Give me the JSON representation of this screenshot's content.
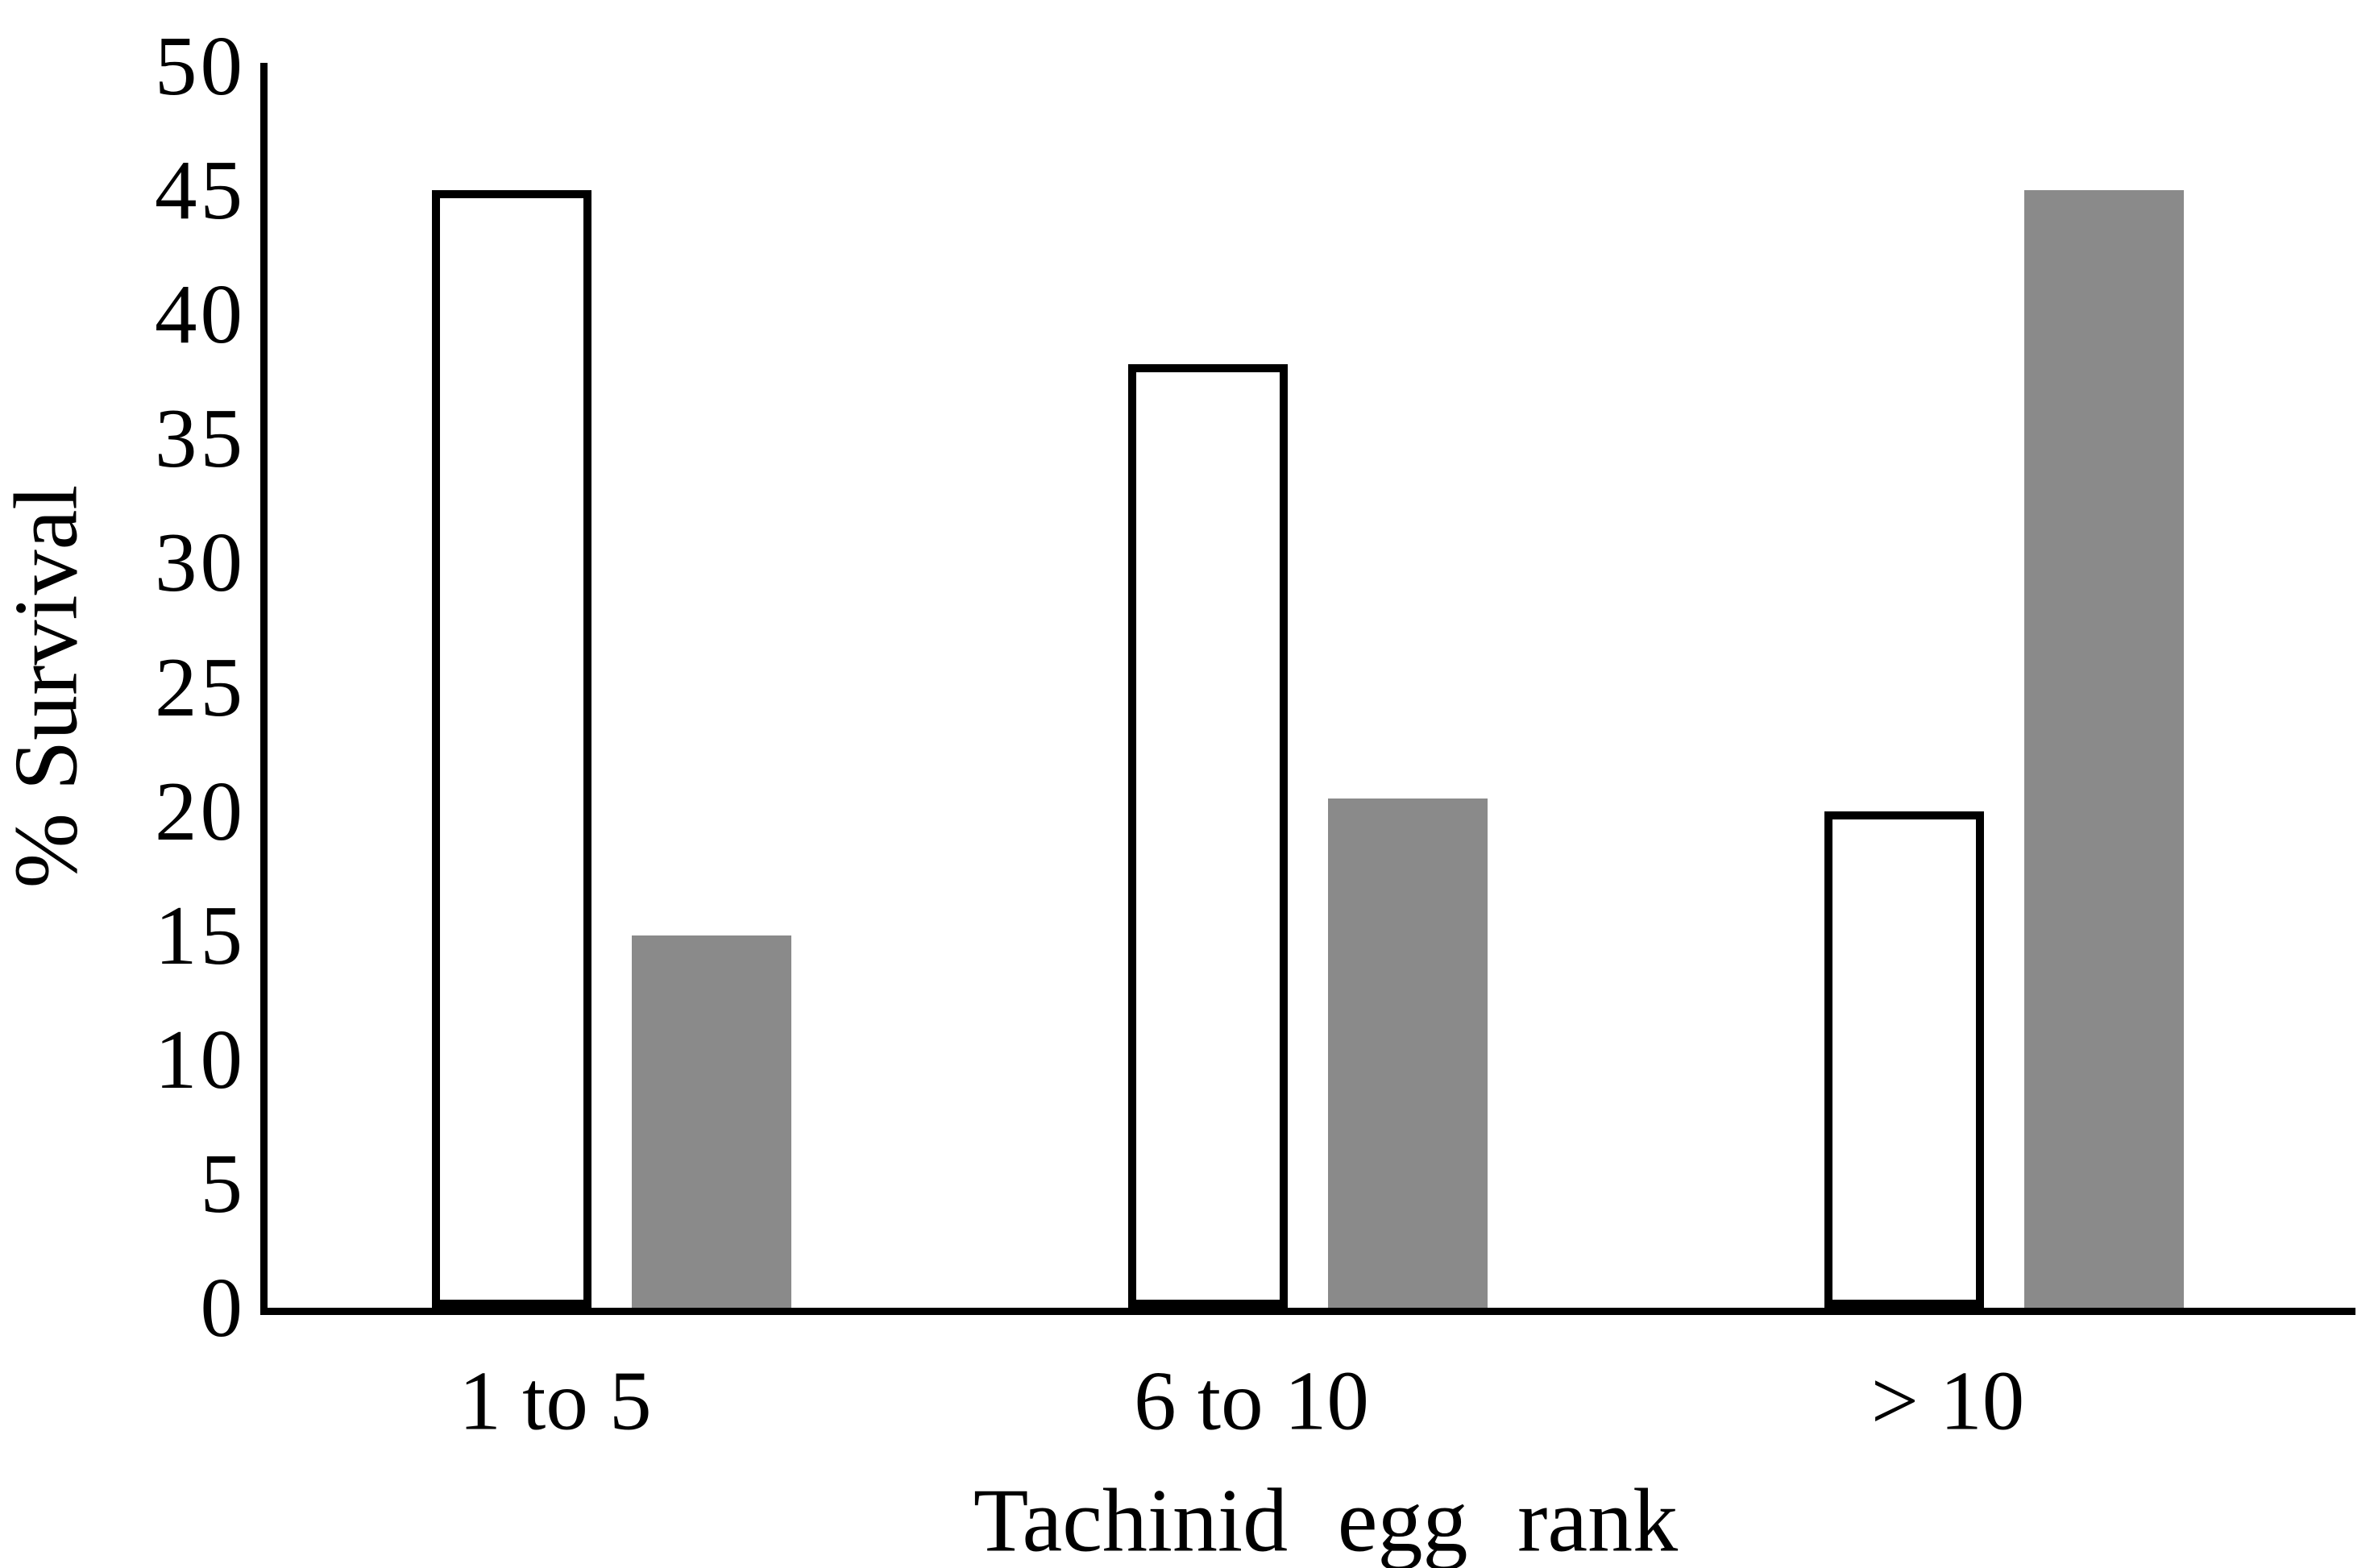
{
  "chart_data": {
    "type": "bar",
    "title": "",
    "xlabel": "Tachinid egg rank",
    "ylabel": "% Survival",
    "categories": [
      "1 to 5",
      "6 to 10",
      "> 10"
    ],
    "series": [
      {
        "fill": "white",
        "values": [
          45,
          38,
          20
        ]
      },
      {
        "fill": "gray",
        "values": [
          15,
          20.5,
          45
        ]
      }
    ],
    "ylim": [
      0,
      50
    ],
    "ytick_step": 5,
    "yticks": [
      0,
      5,
      10,
      15,
      20,
      25,
      30,
      35,
      40,
      45,
      50
    ],
    "grid": false,
    "legend": false
  },
  "colors": {
    "background": "#ffffff",
    "text": "#000000",
    "axis": "#000000",
    "bar_outline": "#000000",
    "bar_fill_white": "#ffffff",
    "bar_fill_gray": "#8a8a8a"
  }
}
